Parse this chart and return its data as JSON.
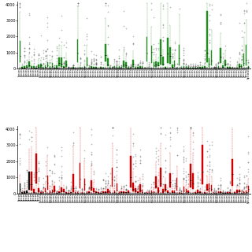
{
  "n_categories": 100,
  "top_panel": {
    "color_box": "#228B22",
    "color_median": "#000000",
    "color_whisker": "#228B22",
    "color_flier": "#666666",
    "ylim": [
      0,
      4200
    ],
    "yticks": [
      0,
      1000,
      2000,
      3000,
      4000
    ],
    "ytick_labels": [
      "0",
      "1000",
      "2000",
      "3000",
      "4000"
    ]
  },
  "bottom_panel": {
    "color_box": "#CC0000",
    "color_median": "#000000",
    "color_whisker": "#CC0000",
    "color_flier": "#666666",
    "ylim": [
      0,
      4200
    ],
    "yticks": [
      0,
      1000,
      2000,
      3000,
      4000
    ],
    "ytick_labels": [
      "0",
      "1000",
      "2000",
      "3000",
      "4000"
    ]
  },
  "bg_color": "#ffffff",
  "tick_label_fontsize": 2.0,
  "ytick_fontsize": 3.5
}
